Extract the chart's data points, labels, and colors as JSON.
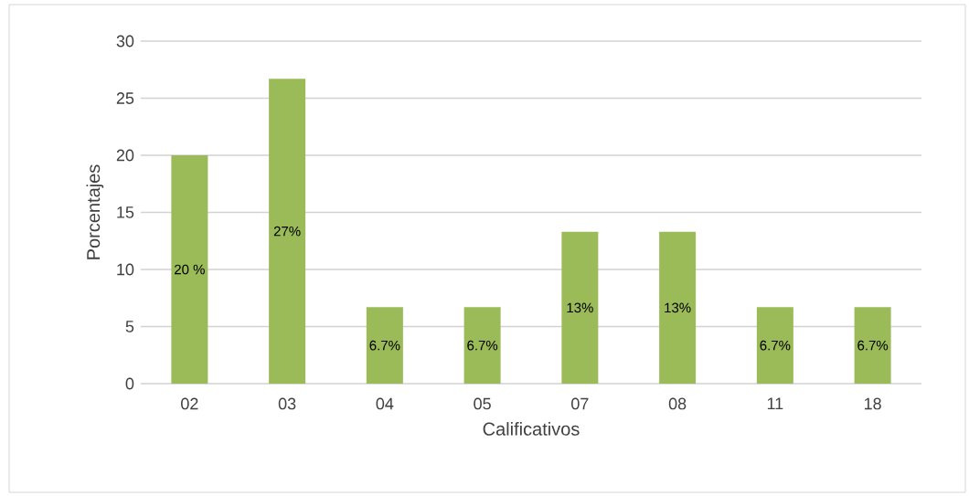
{
  "chart_data": {
    "type": "bar",
    "xlabel": "Calificativos",
    "ylabel": "Porcentajes",
    "categories": [
      "02",
      "03",
      "04",
      "05",
      "07",
      "08",
      "11",
      "18"
    ],
    "values": [
      20,
      26.7,
      6.7,
      6.7,
      13.3,
      13.3,
      6.7,
      6.7
    ],
    "value_labels": [
      "20 %",
      "27%",
      "6.7%",
      "6.7%",
      "13%",
      "13%",
      "6.7%",
      "6.7%"
    ],
    "color": "#9bbb59",
    "ylim": [
      0,
      30
    ],
    "yticks": [
      0,
      5,
      10,
      15,
      20,
      25,
      30
    ],
    "grid": "y"
  }
}
